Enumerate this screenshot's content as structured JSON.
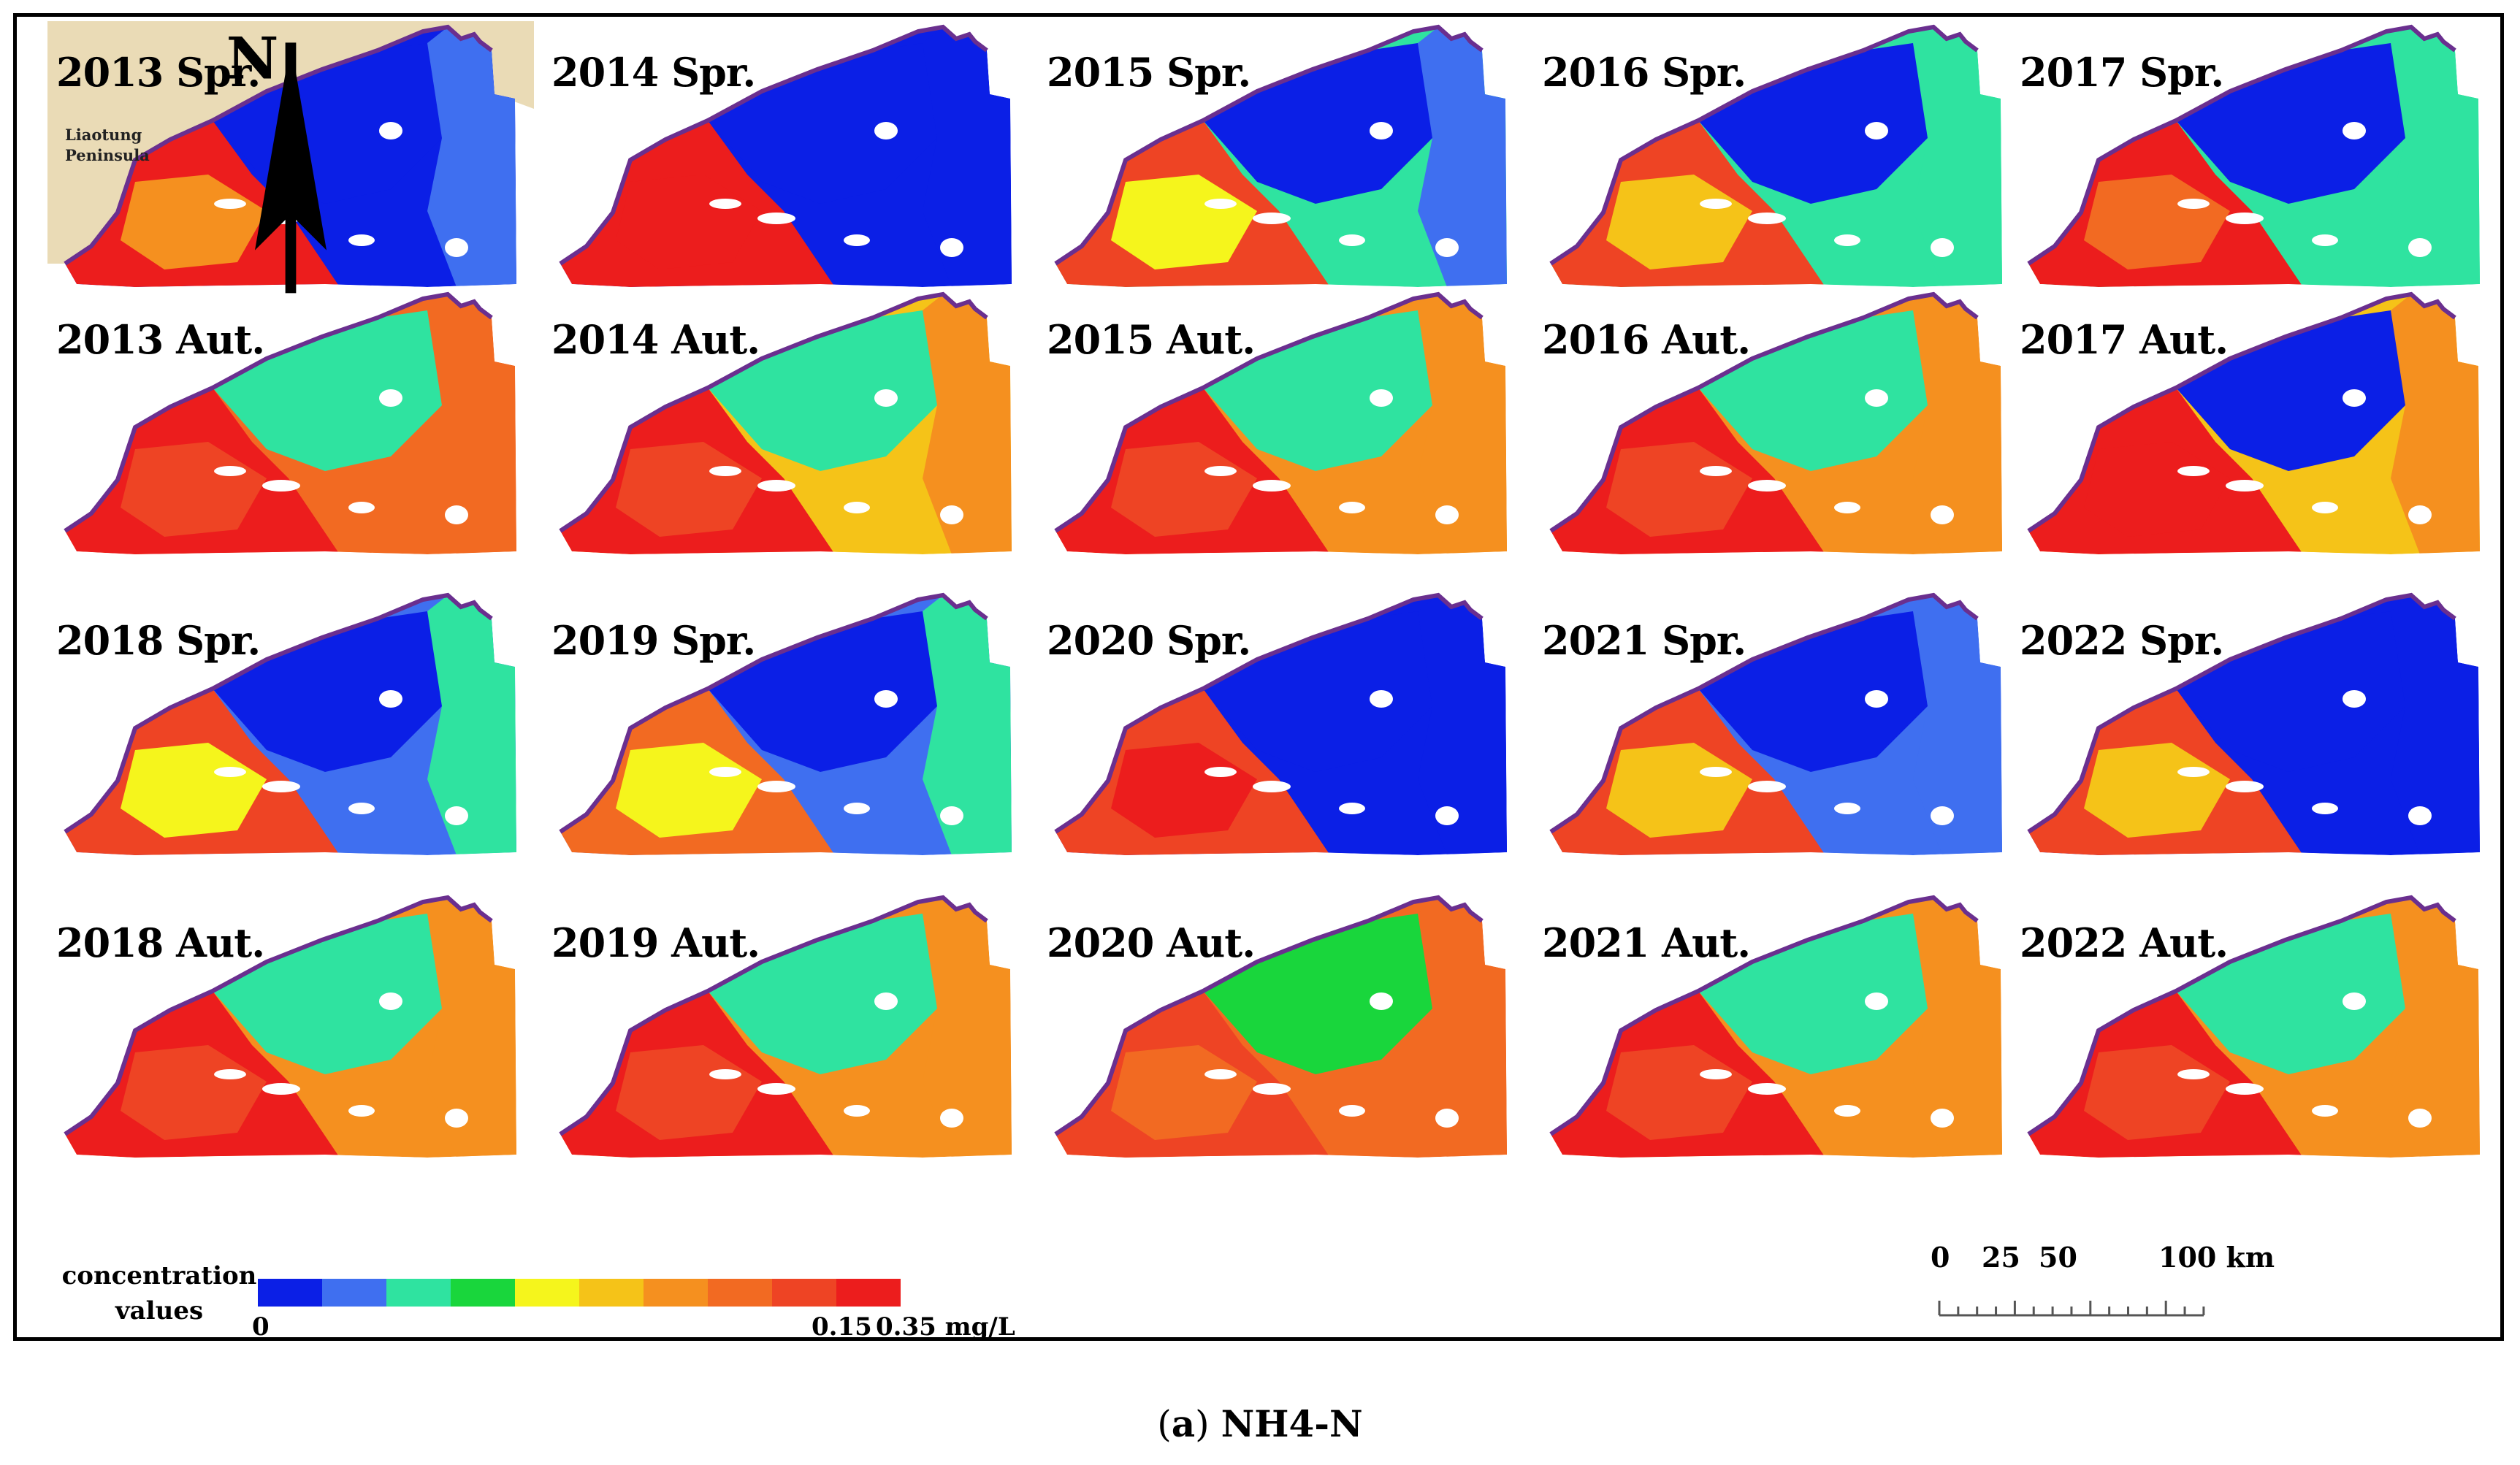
{
  "legend": {
    "title_line1": "concentration",
    "title_line2": "values",
    "min_label": "0",
    "mid_label": "0.15",
    "max_label": "0.35 mg/L",
    "colors": [
      "#0b1fe6",
      "#3f6ff0",
      "#2fe3a0",
      "#19d63c",
      "#f5f51c",
      "#f5c318",
      "#f5901f",
      "#f26a22",
      "#ee4424",
      "#ec1d1d"
    ]
  },
  "scalebar": {
    "t0": "0",
    "t25": "25",
    "t50": "50",
    "t100": "100 km"
  },
  "caption": {
    "letter": "a",
    "open": "(",
    "close": ")",
    "title": "NH4-N"
  },
  "inset": {
    "peninsula_line1": "Liaotung",
    "peninsula_line2": "Peninsula",
    "north_label": "N"
  },
  "map_panels": [
    {
      "label": "2013 Spr.",
      "year": 2013,
      "season": "Spring"
    },
    {
      "label": "2014 Spr.",
      "year": 2014,
      "season": "Spring"
    },
    {
      "label": "2015 Spr.",
      "year": 2015,
      "season": "Spring"
    },
    {
      "label": "2016 Spr.",
      "year": 2016,
      "season": "Spring"
    },
    {
      "label": "2017 Spr.",
      "year": 2017,
      "season": "Spring"
    },
    {
      "label": "2013 Aut.",
      "year": 2013,
      "season": "Autumn"
    },
    {
      "label": "2014 Aut.",
      "year": 2014,
      "season": "Autumn"
    },
    {
      "label": "2015 Aut.",
      "year": 2015,
      "season": "Autumn"
    },
    {
      "label": "2016 Aut.",
      "year": 2016,
      "season": "Autumn"
    },
    {
      "label": "2017 Aut.",
      "year": 2017,
      "season": "Autumn"
    },
    {
      "label": "2018 Spr.",
      "year": 2018,
      "season": "Spring"
    },
    {
      "label": "2019 Spr.",
      "year": 2019,
      "season": "Spring"
    },
    {
      "label": "2020 Spr.",
      "year": 2020,
      "season": "Spring"
    },
    {
      "label": "2021 Spr.",
      "year": 2021,
      "season": "Spring"
    },
    {
      "label": "2022 Spr.",
      "year": 2022,
      "season": "Spring"
    },
    {
      "label": "2018 Aut.",
      "year": 2018,
      "season": "Autumn"
    },
    {
      "label": "2019 Aut.",
      "year": 2019,
      "season": "Autumn"
    },
    {
      "label": "2020 Aut.",
      "year": 2020,
      "season": "Autumn"
    },
    {
      "label": "2021 Aut.",
      "year": 2021,
      "season": "Autumn"
    },
    {
      "label": "2022 Aut.",
      "year": 2022,
      "season": "Autumn"
    }
  ]
}
